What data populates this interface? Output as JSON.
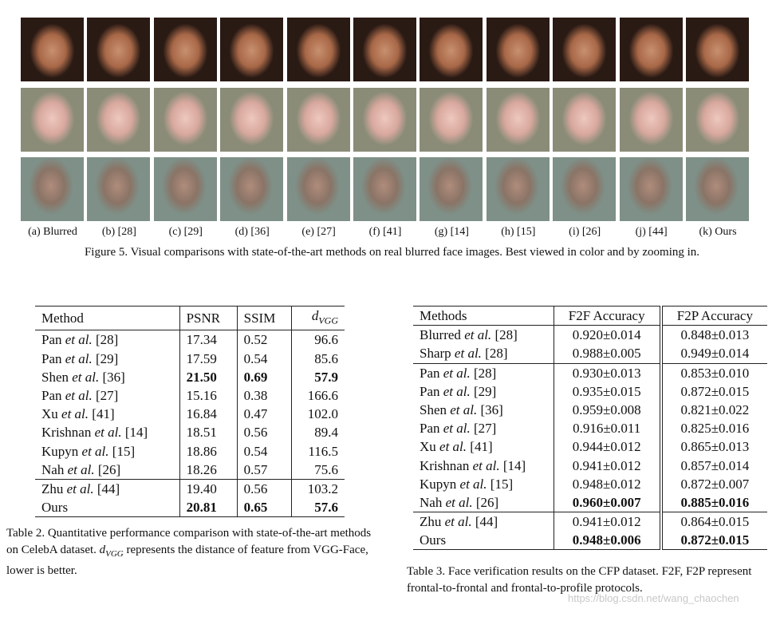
{
  "figure": {
    "labels": [
      "(a) Blurred",
      "(b) [28]",
      "(c) [29]",
      "(d) [36]",
      "(e) [27]",
      "(f) [41]",
      "(g) [14]",
      "(h) [15]",
      "(i) [26]",
      "(j) [44]",
      "(k) Ours"
    ],
    "caption": "Figure 5. Visual comparisons with state-of-the-art methods on real blurred face images. Best viewed in color and by zooming in."
  },
  "table2": {
    "headers": [
      "Method",
      "PSNR",
      "SSIM",
      {
        "text": "d",
        "sub": "VGG"
      }
    ],
    "groups": [
      [
        {
          "method": [
            "Pan ",
            "et al.",
            " [28]"
          ],
          "values": [
            "17.34",
            "0.52",
            "96.6"
          ]
        },
        {
          "method": [
            "Pan ",
            "et al.",
            " [29]"
          ],
          "values": [
            "17.59",
            "0.54",
            "85.6"
          ]
        },
        {
          "method": [
            "Shen ",
            "et al.",
            " [36]"
          ],
          "values": [
            "21.50",
            "0.69",
            "57.9"
          ],
          "bold": true
        },
        {
          "method": [
            "Pan ",
            "et al.",
            " [27]"
          ],
          "values": [
            "15.16",
            "0.38",
            "166.6"
          ]
        },
        {
          "method": [
            "Xu ",
            "et al.",
            " [41]"
          ],
          "values": [
            "16.84",
            "0.47",
            "102.0"
          ]
        },
        {
          "method": [
            "Krishnan ",
            "et al.",
            " [14]"
          ],
          "values": [
            "18.51",
            "0.56",
            "89.4"
          ]
        },
        {
          "method": [
            "Kupyn ",
            "et al.",
            " [15]"
          ],
          "values": [
            "18.86",
            "0.54",
            "116.5"
          ]
        },
        {
          "method": [
            "Nah ",
            "et al.",
            " [26]"
          ],
          "values": [
            "18.26",
            "0.57",
            "75.6"
          ]
        }
      ],
      [
        {
          "method": [
            "Zhu ",
            "et al.",
            " [44]"
          ],
          "values": [
            "19.40",
            "0.56",
            "103.2"
          ]
        },
        {
          "method": [
            "Ours"
          ],
          "values": [
            "20.81",
            "0.65",
            "57.6"
          ],
          "bold": true
        }
      ]
    ],
    "caption": [
      "Table 2. Quantitative performance comparison with state-of-the-art methods on CelebA dataset. ",
      "d",
      "VGG",
      " represents the distance of feature from VGG-Face, lower is better."
    ]
  },
  "table3": {
    "headers": [
      "Methods",
      "F2F Accuracy",
      "F2P Accuracy"
    ],
    "groups": [
      [
        {
          "method": [
            "Blurred ",
            "et al.",
            " [28]"
          ],
          "values": [
            "0.920±0.014",
            "0.848±0.013"
          ]
        },
        {
          "method": [
            "Sharp ",
            "et al.",
            " [28]"
          ],
          "values": [
            "0.988±0.005",
            "0.949±0.014"
          ]
        }
      ],
      [
        {
          "method": [
            "Pan ",
            "et al.",
            " [28]"
          ],
          "values": [
            "0.930±0.013",
            "0.853±0.010"
          ]
        },
        {
          "method": [
            "Pan ",
            "et al.",
            " [29]"
          ],
          "values": [
            "0.935±0.015",
            "0.872±0.015"
          ]
        },
        {
          "method": [
            "Shen ",
            "et al.",
            " [36]"
          ],
          "values": [
            "0.959±0.008",
            "0.821±0.022"
          ]
        },
        {
          "method": [
            "Pan ",
            "et al.",
            " [27]"
          ],
          "values": [
            "0.916±0.011",
            "0.825±0.016"
          ]
        },
        {
          "method": [
            "Xu ",
            "et al.",
            " [41]"
          ],
          "values": [
            "0.944±0.012",
            "0.865±0.013"
          ]
        },
        {
          "method": [
            "Krishnan ",
            "et al.",
            " [14]"
          ],
          "values": [
            "0.941±0.012",
            "0.857±0.014"
          ]
        },
        {
          "method": [
            "Kupyn ",
            "et al.",
            " [15]"
          ],
          "values": [
            "0.948±0.012",
            "0.872±0.007"
          ]
        },
        {
          "method": [
            "Nah ",
            "et al.",
            " [26]"
          ],
          "values": [
            "0.960±0.007",
            "0.885±0.016"
          ],
          "bold": true
        }
      ],
      [
        {
          "method": [
            "Zhu ",
            "et al.",
            " [44]"
          ],
          "values": [
            "0.941±0.012",
            "0.864±0.015"
          ]
        },
        {
          "method": [
            "Ours"
          ],
          "values": [
            "0.948±0.006",
            "0.872±0.015"
          ],
          "bold": true
        }
      ]
    ],
    "caption": "Table 3. Face verification results on the CFP dataset. F2F, F2P represent frontal-to-frontal and frontal-to-profile protocols."
  },
  "watermark": "https://blog.csdn.net/wang_chaochen"
}
